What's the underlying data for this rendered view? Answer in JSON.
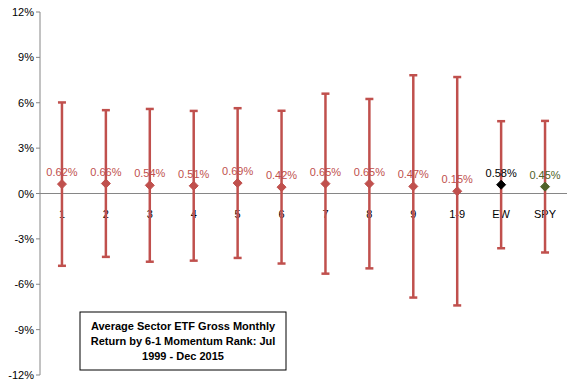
{
  "chart_data": {
    "type": "dot",
    "title": "Average Sector ETF Gross Monthly Return by 6-1 Momentum Rank: Jul 1999 - Dec 2015",
    "categories": [
      "1",
      "2",
      "3",
      "4",
      "5",
      "6",
      "7",
      "8",
      "9",
      "1-9",
      "EW",
      "SPY"
    ],
    "values": [
      0.62,
      0.66,
      0.54,
      0.51,
      0.69,
      0.42,
      0.65,
      0.65,
      0.47,
      0.15,
      0.58,
      0.45
    ],
    "value_labels": [
      "0.62%",
      "0.66%",
      "0.54%",
      "0.51%",
      "0.69%",
      "0.42%",
      "0.65%",
      "0.65%",
      "0.47%",
      "0.15%",
      "0.58%",
      "0.45%"
    ],
    "errors": [
      5.4,
      4.85,
      5.05,
      4.95,
      4.95,
      5.05,
      5.95,
      5.6,
      7.35,
      7.55,
      4.2,
      4.35
    ],
    "color": "#c0504d",
    "colors": [
      "#c0504d",
      "#c0504d",
      "#c0504d",
      "#c0504d",
      "#c0504d",
      "#c0504d",
      "#c0504d",
      "#c0504d",
      "#c0504d",
      "#c0504d",
      "#000000",
      "#4f6228"
    ],
    "marker": "diamond",
    "data_labels": true,
    "grid": false,
    "ylim": [
      -12,
      12
    ],
    "yticks": [
      {
        "value": -12,
        "label": "-12%"
      },
      {
        "value": -9,
        "label": "-9%"
      },
      {
        "value": -6,
        "label": "-6%"
      },
      {
        "value": -3,
        "label": "-3%"
      },
      {
        "value": 0,
        "label": "0%"
      },
      {
        "value": 3,
        "label": "3%"
      },
      {
        "value": 6,
        "label": "6%"
      },
      {
        "value": 9,
        "label": "9%"
      },
      {
        "value": 12,
        "label": "12%"
      }
    ]
  }
}
